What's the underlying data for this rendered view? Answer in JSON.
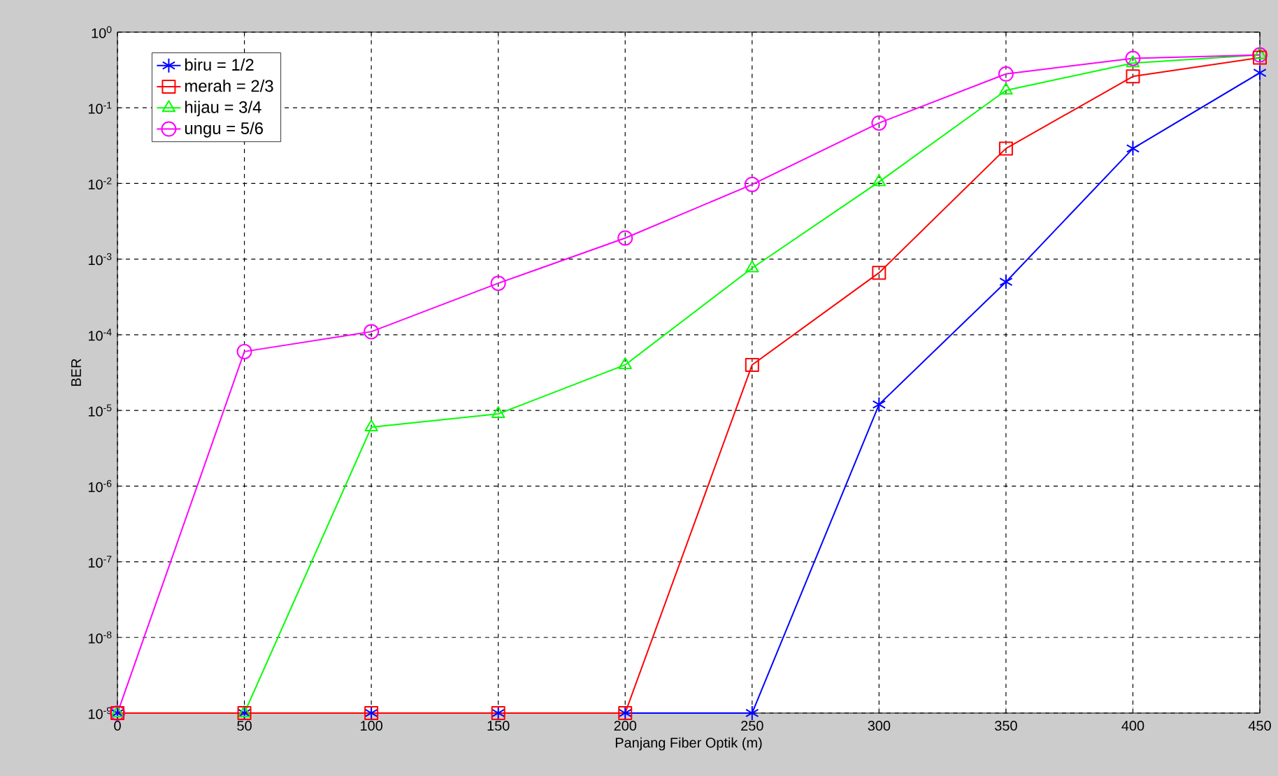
{
  "chart_data": {
    "type": "line",
    "xlabel": "Panjang Fiber Optik (m)",
    "ylabel": "BER",
    "x": [
      0,
      50,
      100,
      150,
      200,
      250,
      300,
      350,
      400,
      450
    ],
    "series": [
      {
        "name": "biru = 1/2",
        "color": "#0000ff",
        "marker": "cross",
        "values": [
          1e-09,
          1e-09,
          1e-09,
          1e-09,
          1e-09,
          1e-09,
          1.2e-05,
          0.0005,
          0.029,
          0.29
        ]
      },
      {
        "name": "merah = 2/3",
        "color": "#ff0000",
        "marker": "square",
        "values": [
          1e-09,
          1e-09,
          1e-09,
          1e-09,
          1e-09,
          4e-05,
          0.00066,
          0.029,
          0.26,
          0.46
        ]
      },
      {
        "name": "hijau = 3/4",
        "color": "#00ff00",
        "marker": "triangle",
        "values": [
          1e-09,
          1e-09,
          6e-06,
          9e-06,
          4e-05,
          0.00076,
          0.0105,
          0.17,
          0.39,
          0.5
        ]
      },
      {
        "name": "ungu = 5/6",
        "color": "#ff00ff",
        "marker": "circle",
        "values": [
          1e-09,
          6e-05,
          0.00011,
          0.00048,
          0.0019,
          0.0097,
          0.063,
          0.28,
          0.45,
          0.5
        ]
      }
    ],
    "log": "y",
    "grid": true,
    "legend": "top left",
    "line_style": "solid",
    "xlim": [
      0,
      450
    ],
    "xticks": [
      0,
      50,
      100,
      150,
      200,
      250,
      300,
      350,
      400,
      450
    ],
    "ylim": [
      1e-09,
      1
    ],
    "yticks": [
      {
        "value": 1e-09,
        "label": "10$^{-9}$"
      },
      {
        "value": 1e-08,
        "label": "10$^{-8}$"
      },
      {
        "value": 1e-07,
        "label": "10$^{-7}$"
      },
      {
        "value": 1e-06,
        "label": "10$^{-6}$"
      },
      {
        "value": 1e-05,
        "label": "10$^{-5}$"
      },
      {
        "value": 0.0001,
        "label": "10$^{-4}$"
      },
      {
        "value": 0.001,
        "label": "10$^{-3}$"
      },
      {
        "value": 0.01,
        "label": "10$^{-2}$"
      },
      {
        "value": 0.1,
        "label": "10$^{-1}$"
      },
      {
        "value": 1,
        "label": "10$^{0}$"
      }
    ]
  }
}
